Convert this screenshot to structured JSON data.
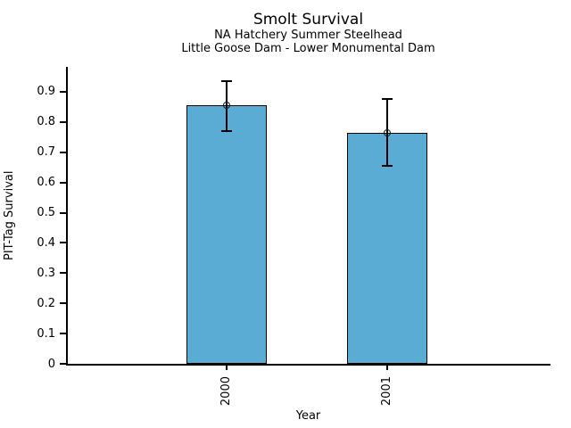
{
  "figure": {
    "title": "Smolt Survival",
    "subtitle_line1": "NA Hatchery Summer Steelhead",
    "subtitle_line2": "Little Goose Dam - Lower Monumental Dam"
  },
  "chart_data": {
    "type": "bar",
    "title": "Smolt Survival",
    "subtitle": [
      "NA Hatchery Summer Steelhead",
      "Little Goose Dam - Lower Monumental Dam"
    ],
    "xlabel": "Year",
    "ylabel": "PIT-Tag Survival",
    "categories": [
      "2000",
      "2001"
    ],
    "values": [
      0.855,
      0.765
    ],
    "error_high": [
      0.935,
      0.875
    ],
    "error_low": [
      0.77,
      0.655
    ],
    "yticks": [
      "0",
      "0.1",
      "0.2",
      "0.3",
      "0.4",
      "0.5",
      "0.6",
      "0.7",
      "0.8",
      "0.9"
    ],
    "ylim": [
      0,
      0.98
    ],
    "grid": false,
    "legend": "none",
    "bar_color": "#5AACD4",
    "bar_edge_color": "#000000",
    "error_bar_color": "#000000",
    "marker": "open-circle"
  }
}
